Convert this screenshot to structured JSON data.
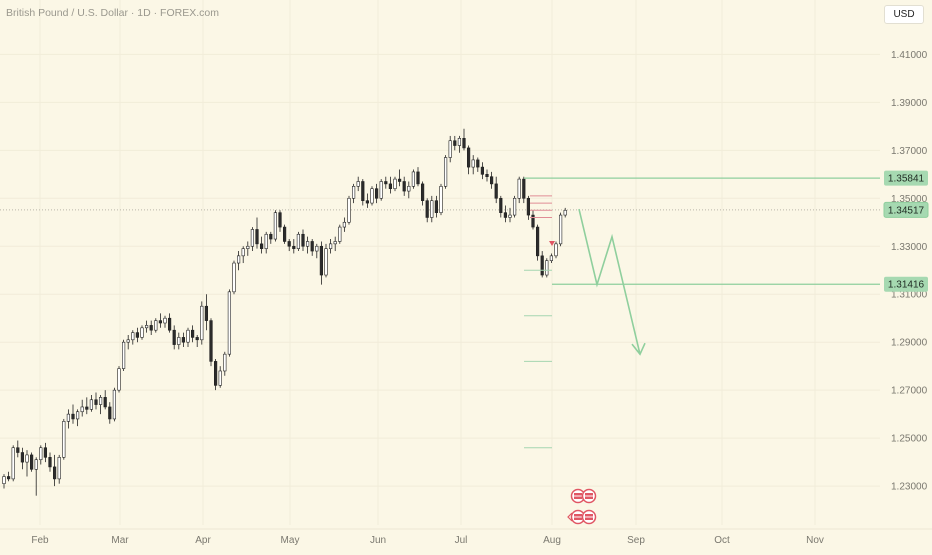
{
  "header": {
    "title": "British Pound / U.S. Dollar · 1D · FOREX.com",
    "currency": "USD"
  },
  "chart_data": {
    "type": "candlestick",
    "symbol": "British Pound / U.S. Dollar",
    "interval": "1D",
    "source": "FOREX.com",
    "currency": "USD",
    "x_ticks": [
      "Feb",
      "Mar",
      "Apr",
      "May",
      "Jun",
      "Jul",
      "Aug",
      "Sep",
      "Oct",
      "Nov"
    ],
    "y_ticks": [
      "1.41000",
      "1.39000",
      "1.37000",
      "1.35000",
      "1.33000",
      "1.31000",
      "1.29000",
      "1.27000",
      "1.25000",
      "1.23000"
    ],
    "ylim": [
      1.2192,
      1.4235
    ],
    "price_labels": [
      {
        "value": "1.35841",
        "kind": "resistance"
      },
      {
        "value": "1.34517",
        "kind": "last"
      },
      {
        "value": "1.31416",
        "kind": "support"
      }
    ],
    "candles": [
      [
        1.231,
        1.235,
        1.229,
        1.234
      ],
      [
        1.234,
        1.236,
        1.232,
        1.233
      ],
      [
        1.233,
        1.247,
        1.232,
        1.246
      ],
      [
        1.246,
        1.249,
        1.242,
        1.244
      ],
      [
        1.244,
        1.246,
        1.237,
        1.24
      ],
      [
        1.24,
        1.245,
        1.234,
        1.243
      ],
      [
        1.243,
        1.244,
        1.236,
        1.237
      ],
      [
        1.237,
        1.242,
        1.226,
        1.241
      ],
      [
        1.241,
        1.247,
        1.239,
        1.246
      ],
      [
        1.246,
        1.248,
        1.24,
        1.242
      ],
      [
        1.242,
        1.244,
        1.236,
        1.238
      ],
      [
        1.238,
        1.243,
        1.23,
        1.233
      ],
      [
        1.233,
        1.243,
        1.231,
        1.242
      ],
      [
        1.242,
        1.258,
        1.241,
        1.257
      ],
      [
        1.257,
        1.262,
        1.254,
        1.26
      ],
      [
        1.26,
        1.264,
        1.256,
        1.258
      ],
      [
        1.258,
        1.262,
        1.255,
        1.261
      ],
      [
        1.261,
        1.266,
        1.259,
        1.263
      ],
      [
        1.263,
        1.267,
        1.26,
        1.262
      ],
      [
        1.262,
        1.268,
        1.261,
        1.266
      ],
      [
        1.266,
        1.269,
        1.262,
        1.264
      ],
      [
        1.264,
        1.268,
        1.26,
        1.267
      ],
      [
        1.267,
        1.27,
        1.262,
        1.263
      ],
      [
        1.263,
        1.265,
        1.256,
        1.258
      ],
      [
        1.258,
        1.271,
        1.257,
        1.27
      ],
      [
        1.27,
        1.28,
        1.269,
        1.279
      ],
      [
        1.279,
        1.291,
        1.278,
        1.29
      ],
      [
        1.29,
        1.293,
        1.287,
        1.291
      ],
      [
        1.291,
        1.295,
        1.289,
        1.294
      ],
      [
        1.294,
        1.296,
        1.29,
        1.292
      ],
      [
        1.292,
        1.297,
        1.291,
        1.296
      ],
      [
        1.296,
        1.299,
        1.294,
        1.297
      ],
      [
        1.297,
        1.299,
        1.293,
        1.295
      ],
      [
        1.295,
        1.3,
        1.294,
        1.299
      ],
      [
        1.299,
        1.302,
        1.296,
        1.298
      ],
      [
        1.298,
        1.301,
        1.296,
        1.3
      ],
      [
        1.3,
        1.302,
        1.294,
        1.295
      ],
      [
        1.295,
        1.297,
        1.287,
        1.289
      ],
      [
        1.289,
        1.294,
        1.287,
        1.292
      ],
      [
        1.292,
        1.294,
        1.288,
        1.29
      ],
      [
        1.29,
        1.296,
        1.288,
        1.295
      ],
      [
        1.295,
        1.297,
        1.29,
        1.292
      ],
      [
        1.292,
        1.293,
        1.288,
        1.291
      ],
      [
        1.291,
        1.307,
        1.289,
        1.305
      ],
      [
        1.305,
        1.31,
        1.295,
        1.299
      ],
      [
        1.299,
        1.3,
        1.28,
        1.282
      ],
      [
        1.282,
        1.283,
        1.27,
        1.272
      ],
      [
        1.272,
        1.28,
        1.271,
        1.278
      ],
      [
        1.278,
        1.286,
        1.276,
        1.285
      ],
      [
        1.285,
        1.312,
        1.284,
        1.311
      ],
      [
        1.311,
        1.324,
        1.31,
        1.323
      ],
      [
        1.323,
        1.328,
        1.32,
        1.326
      ],
      [
        1.326,
        1.33,
        1.323,
        1.329
      ],
      [
        1.329,
        1.332,
        1.326,
        1.33
      ],
      [
        1.33,
        1.338,
        1.328,
        1.337
      ],
      [
        1.337,
        1.342,
        1.329,
        1.331
      ],
      [
        1.331,
        1.334,
        1.327,
        1.329
      ],
      [
        1.329,
        1.336,
        1.327,
        1.335
      ],
      [
        1.335,
        1.336,
        1.331,
        1.333
      ],
      [
        1.333,
        1.345,
        1.332,
        1.344
      ],
      [
        1.344,
        1.345,
        1.336,
        1.338
      ],
      [
        1.338,
        1.339,
        1.331,
        1.332
      ],
      [
        1.332,
        1.333,
        1.328,
        1.33
      ],
      [
        1.33,
        1.333,
        1.327,
        1.329
      ],
      [
        1.329,
        1.336,
        1.328,
        1.335
      ],
      [
        1.335,
        1.337,
        1.328,
        1.33
      ],
      [
        1.33,
        1.334,
        1.327,
        1.332
      ],
      [
        1.332,
        1.333,
        1.326,
        1.328
      ],
      [
        1.328,
        1.331,
        1.325,
        1.33
      ],
      [
        1.33,
        1.332,
        1.314,
        1.318
      ],
      [
        1.318,
        1.331,
        1.317,
        1.329
      ],
      [
        1.329,
        1.333,
        1.327,
        1.331
      ],
      [
        1.331,
        1.334,
        1.328,
        1.332
      ],
      [
        1.332,
        1.339,
        1.331,
        1.338
      ],
      [
        1.338,
        1.342,
        1.336,
        1.34
      ],
      [
        1.34,
        1.351,
        1.339,
        1.35
      ],
      [
        1.35,
        1.356,
        1.348,
        1.355
      ],
      [
        1.355,
        1.359,
        1.353,
        1.357
      ],
      [
        1.357,
        1.358,
        1.347,
        1.349
      ],
      [
        1.349,
        1.352,
        1.346,
        1.348
      ],
      [
        1.348,
        1.355,
        1.347,
        1.354
      ],
      [
        1.354,
        1.356,
        1.348,
        1.35
      ],
      [
        1.35,
        1.358,
        1.349,
        1.357
      ],
      [
        1.357,
        1.359,
        1.354,
        1.356
      ],
      [
        1.356,
        1.359,
        1.352,
        1.354
      ],
      [
        1.354,
        1.359,
        1.353,
        1.358
      ],
      [
        1.358,
        1.362,
        1.355,
        1.357
      ],
      [
        1.357,
        1.359,
        1.351,
        1.353
      ],
      [
        1.353,
        1.357,
        1.35,
        1.355
      ],
      [
        1.355,
        1.362,
        1.354,
        1.361
      ],
      [
        1.361,
        1.363,
        1.355,
        1.356
      ],
      [
        1.356,
        1.357,
        1.347,
        1.349
      ],
      [
        1.349,
        1.35,
        1.34,
        1.342
      ],
      [
        1.342,
        1.351,
        1.34,
        1.349
      ],
      [
        1.349,
        1.351,
        1.342,
        1.344
      ],
      [
        1.344,
        1.356,
        1.343,
        1.355
      ],
      [
        1.355,
        1.368,
        1.354,
        1.367
      ],
      [
        1.367,
        1.376,
        1.365,
        1.374
      ],
      [
        1.374,
        1.376,
        1.37,
        1.372
      ],
      [
        1.372,
        1.376,
        1.369,
        1.375
      ],
      [
        1.375,
        1.379,
        1.37,
        1.371
      ],
      [
        1.371,
        1.372,
        1.36,
        1.363
      ],
      [
        1.363,
        1.368,
        1.36,
        1.366
      ],
      [
        1.366,
        1.367,
        1.361,
        1.363
      ],
      [
        1.363,
        1.365,
        1.358,
        1.36
      ],
      [
        1.36,
        1.362,
        1.357,
        1.359
      ],
      [
        1.359,
        1.361,
        1.354,
        1.356
      ],
      [
        1.356,
        1.359,
        1.348,
        1.35
      ],
      [
        1.35,
        1.351,
        1.342,
        1.344
      ],
      [
        1.344,
        1.347,
        1.34,
        1.342
      ],
      [
        1.342,
        1.346,
        1.34,
        1.343
      ],
      [
        1.343,
        1.351,
        1.342,
        1.35
      ],
      [
        1.35,
        1.359,
        1.348,
        1.358
      ],
      [
        1.358,
        1.359,
        1.348,
        1.35
      ],
      [
        1.35,
        1.351,
        1.341,
        1.343
      ],
      [
        1.343,
        1.345,
        1.337,
        1.338
      ],
      [
        1.338,
        1.339,
        1.324,
        1.326
      ],
      [
        1.326,
        1.328,
        1.317,
        1.318
      ],
      [
        1.318,
        1.325,
        1.317,
        1.324
      ],
      [
        1.324,
        1.327,
        1.323,
        1.326
      ],
      [
        1.326,
        1.332,
        1.325,
        1.331
      ],
      [
        1.331,
        1.344,
        1.33,
        1.343
      ],
      [
        1.343,
        1.346,
        1.342,
        1.345
      ]
    ],
    "drawings": {
      "resistance_level": 1.35841,
      "support_level": 1.31416,
      "projection_path": [
        {
          "price": 1.3455,
          "date": "Aug"
        },
        {
          "price": 1.314
        },
        {
          "price": 1.334
        },
        {
          "price": 1.285,
          "date": "Sep"
        }
      ]
    }
  }
}
